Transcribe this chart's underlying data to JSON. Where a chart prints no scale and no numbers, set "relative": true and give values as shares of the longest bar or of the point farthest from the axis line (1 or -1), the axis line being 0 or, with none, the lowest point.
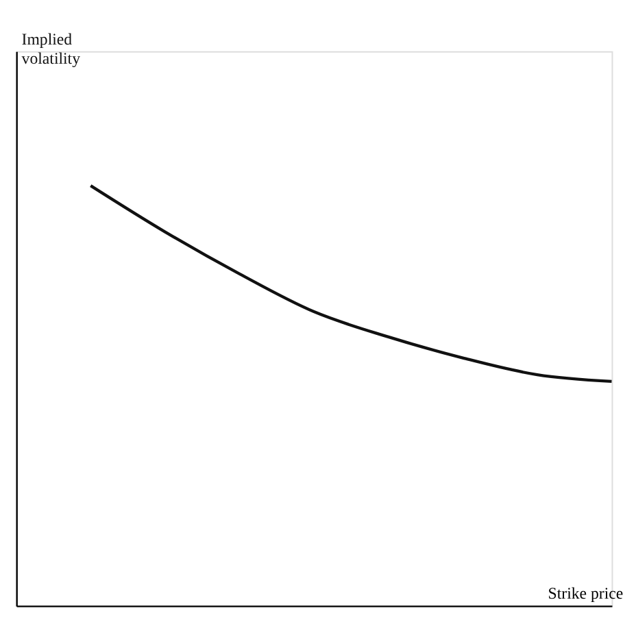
{
  "chart_data": {
    "type": "line",
    "relative": true,
    "xlabel": "Strike price",
    "annotations": [
      "Implied volatility"
    ],
    "categories": [
      null,
      null,
      null,
      null,
      null,
      null,
      null,
      null,
      null
    ],
    "series": [
      {
        "color": "#111111",
        "values": [
          null,
          1.0,
          0.89,
          0.79,
          0.7,
          0.64,
          0.59,
          0.55,
          0.534
        ]
      }
    ],
    "grid": false,
    "marker": "none",
    "line_style": "solid"
  }
}
